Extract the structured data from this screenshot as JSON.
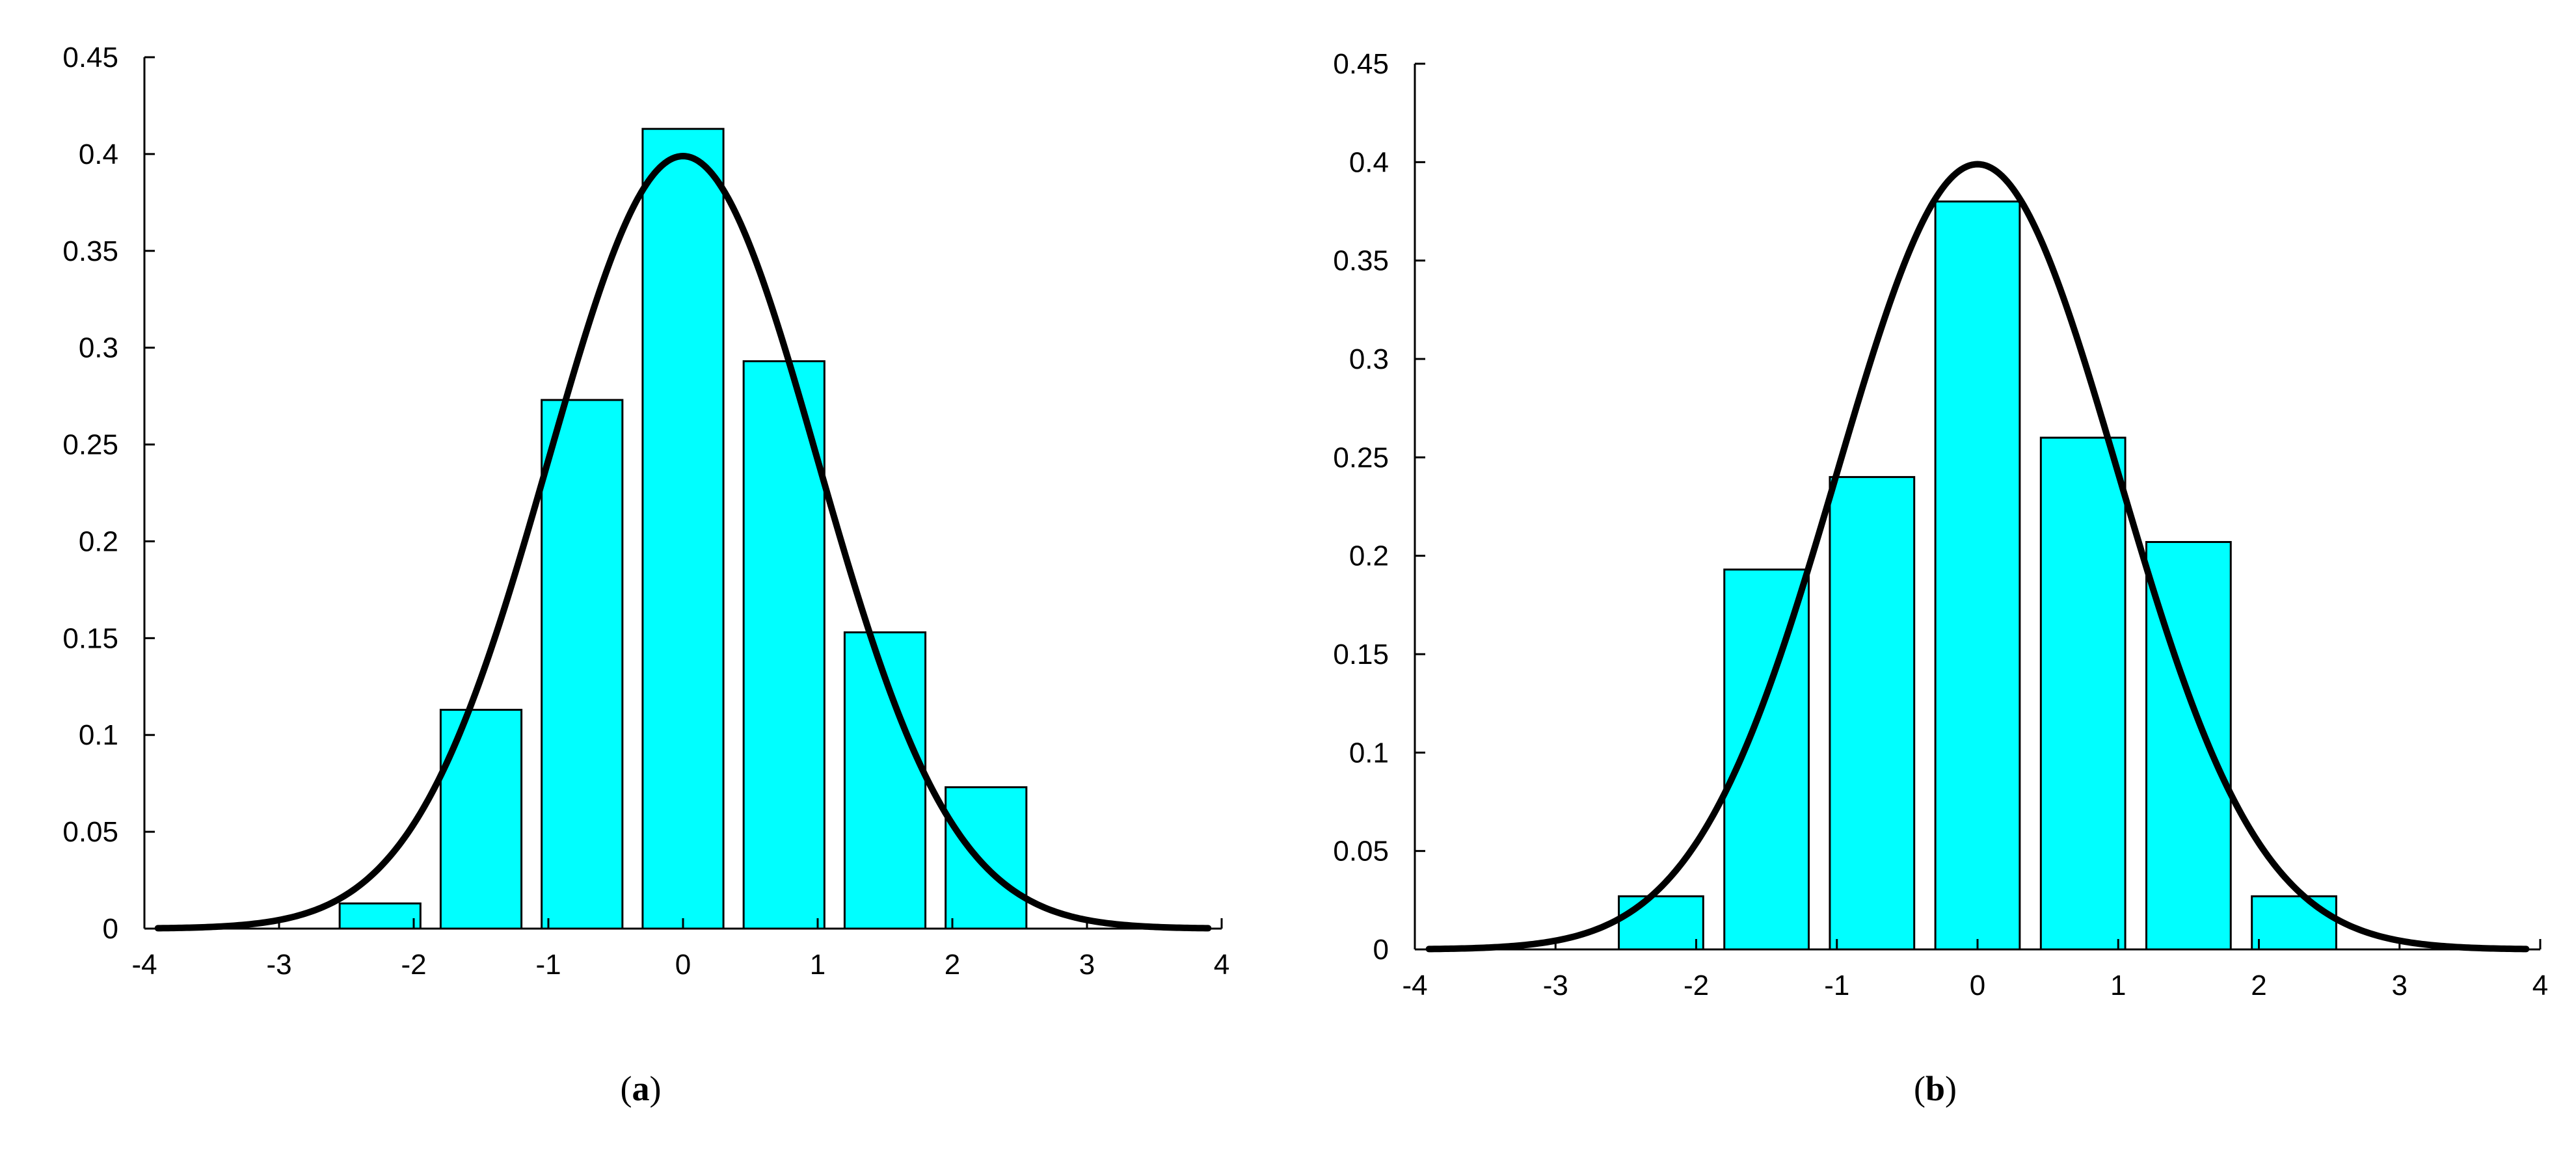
{
  "figure": {
    "bar_color": "#00ffff",
    "bar_stroke": "#000000",
    "curve_color": "#000000"
  },
  "chart_data": [
    {
      "type": "bar",
      "panel": "a",
      "caption_open": "(",
      "caption_letter": "a",
      "caption_close": ")",
      "title": "",
      "xlabel": "",
      "ylabel": "",
      "xlim": [
        -4,
        4
      ],
      "ylim": [
        0,
        0.45
      ],
      "xticks": [
        "-4",
        "-3",
        "-2",
        "-1",
        "0",
        "1",
        "2",
        "3",
        "4"
      ],
      "yticks": [
        "0",
        "0.05",
        "0.1",
        "0.15",
        "0.2",
        "0.25",
        "0.3",
        "0.35",
        "0.4",
        "0.45"
      ],
      "bin_width": 0.75,
      "bar_width": 0.6,
      "bin_centers": [
        -2.25,
        -1.5,
        -0.75,
        0,
        0.75,
        1.5,
        2.25
      ],
      "values": [
        0.013,
        0.113,
        0.273,
        0.413,
        0.293,
        0.153,
        0.073
      ],
      "overlay": {
        "type": "line",
        "name": "standard normal pdf",
        "mean": 0,
        "std": 1,
        "x_range": [
          -3.9,
          3.9
        ]
      }
    },
    {
      "type": "bar",
      "panel": "b",
      "caption_open": "(",
      "caption_letter": "b",
      "caption_close": ")",
      "title": "",
      "xlabel": "",
      "ylabel": "",
      "xlim": [
        -4,
        4
      ],
      "ylim": [
        0,
        0.45
      ],
      "xticks": [
        "-4",
        "-3",
        "-2",
        "-1",
        "0",
        "1",
        "2",
        "3",
        "4"
      ],
      "yticks": [
        "0",
        "0.05",
        "0.1",
        "0.15",
        "0.2",
        "0.25",
        "0.3",
        "0.35",
        "0.4",
        "0.45"
      ],
      "bin_width": 0.75,
      "bar_width": 0.6,
      "bin_centers": [
        -2.25,
        -1.5,
        -0.75,
        0,
        0.75,
        1.5,
        2.25
      ],
      "values": [
        0.027,
        0.193,
        0.24,
        0.38,
        0.26,
        0.207,
        0.027
      ],
      "overlay": {
        "type": "line",
        "name": "standard normal pdf",
        "mean": 0,
        "std": 1,
        "x_range": [
          -3.9,
          3.9
        ]
      }
    }
  ]
}
